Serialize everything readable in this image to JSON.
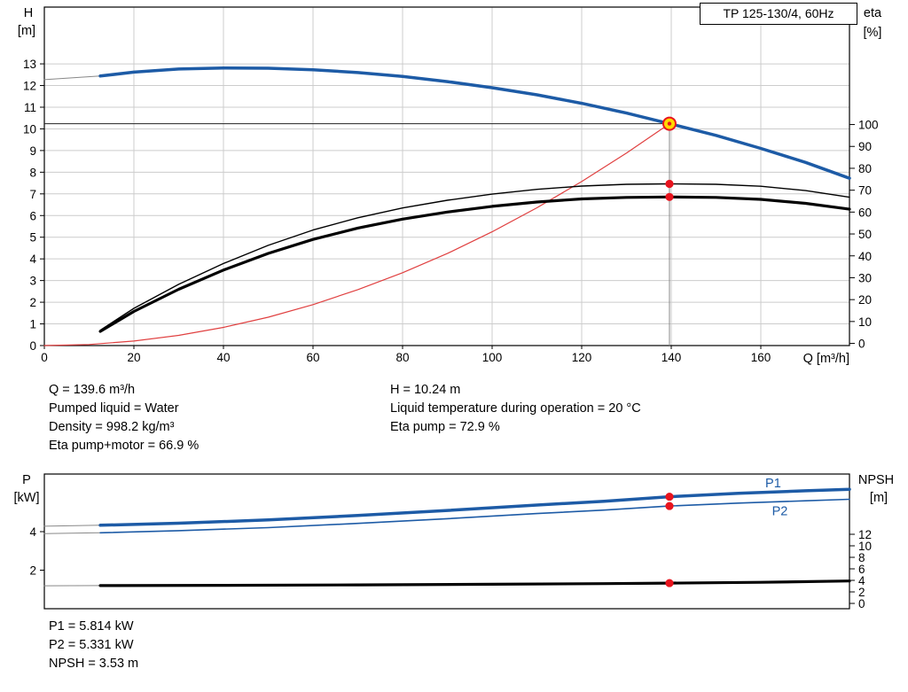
{
  "title_box": "TP 125-130/4, 60Hz",
  "colors": {
    "curve_blue": "#1d5ba6",
    "system_red": "#e04040",
    "dot_red": "#e8141e",
    "duty_yellow": "#ffd800",
    "grid": "#cccccc",
    "connector_gray": "#888888",
    "black": "#000000"
  },
  "chart_data": [
    {
      "type": "line",
      "name": "qh-performance",
      "grid": true,
      "x_label": "Q [m³/h]",
      "y_left_label": [
        "H",
        "[m]"
      ],
      "y_right_label": [
        "eta",
        "[%]"
      ],
      "axes": {
        "x": {
          "min": 0,
          "max": 179.8,
          "ticks": [
            0,
            20,
            40,
            60,
            80,
            100,
            120,
            140,
            160
          ]
        },
        "y_left": {
          "min": 0,
          "max": 15.62,
          "ticks": [
            0,
            1,
            2,
            3,
            4,
            5,
            6,
            7,
            8,
            9,
            10,
            11,
            12,
            13
          ]
        },
        "y_right": {
          "min": -0.99,
          "max": 153.66,
          "ticks": [
            0,
            10,
            20,
            30,
            40,
            50,
            60,
            70,
            80,
            90,
            100
          ]
        }
      },
      "ref_lines": [
        {
          "type": "h",
          "at": 10.24,
          "from": 0,
          "to": 139.6,
          "color": "#222222",
          "w": 1
        },
        {
          "type": "v",
          "at": 139.6,
          "from": 0,
          "to": 10.24,
          "color": "#888888",
          "w": 1
        }
      ],
      "series": [
        {
          "name": "pump-curve-connector",
          "axis": "left",
          "color": "#888888",
          "w": 1,
          "pts": [
            [
              0,
              12.27
            ],
            [
              12.5,
              12.44
            ]
          ]
        },
        {
          "name": "system-curve",
          "axis": "left",
          "color": "#e04040",
          "w": 1.2,
          "pts": [
            [
              0,
              0
            ],
            [
              10,
              0.05
            ],
            [
              20,
              0.21
            ],
            [
              30,
              0.47
            ],
            [
              40,
              0.84
            ],
            [
              50,
              1.31
            ],
            [
              60,
              1.89
            ],
            [
              70,
              2.58
            ],
            [
              80,
              3.36
            ],
            [
              90,
              4.25
            ],
            [
              100,
              5.25
            ],
            [
              110,
              6.36
            ],
            [
              120,
              7.57
            ],
            [
              130,
              8.88
            ],
            [
              139.6,
              10.24
            ]
          ]
        },
        {
          "name": "eta-pump-motor-curve",
          "axis": "right",
          "color": "#000000",
          "w": 3.2,
          "pts": [
            [
              12.5,
              5.5
            ],
            [
              20,
              14.6
            ],
            [
              30,
              24.7
            ],
            [
              40,
              33.5
            ],
            [
              50,
              41.1
            ],
            [
              60,
              47.5
            ],
            [
              70,
              52.7
            ],
            [
              80,
              56.8
            ],
            [
              90,
              60.0
            ],
            [
              100,
              62.6
            ],
            [
              110,
              64.6
            ],
            [
              120,
              66.0
            ],
            [
              130,
              66.7
            ],
            [
              139.6,
              66.9
            ],
            [
              150,
              66.7
            ],
            [
              160,
              65.8
            ],
            [
              170,
              64.0
            ],
            [
              179.8,
              61.3
            ]
          ]
        },
        {
          "name": "eta-pump-curve",
          "axis": "right",
          "color": "#000000",
          "w": 1.4,
          "pts": [
            [
              12.5,
              6
            ],
            [
              20,
              16
            ],
            [
              30,
              27
            ],
            [
              40,
              36.5
            ],
            [
              50,
              44.8
            ],
            [
              60,
              51.8
            ],
            [
              70,
              57.4
            ],
            [
              80,
              61.9
            ],
            [
              90,
              65.4
            ],
            [
              100,
              68.2
            ],
            [
              110,
              70.4
            ],
            [
              120,
              71.9
            ],
            [
              130,
              72.7
            ],
            [
              139.6,
              72.9
            ],
            [
              150,
              72.7
            ],
            [
              160,
              71.8
            ],
            [
              170,
              69.8
            ],
            [
              179.8,
              66.8
            ]
          ]
        },
        {
          "name": "pump-head-curve",
          "axis": "left",
          "color": "#1d5ba6",
          "w": 3.5,
          "pts": [
            [
              12.5,
              12.44
            ],
            [
              20,
              12.62
            ],
            [
              30,
              12.76
            ],
            [
              40,
              12.81
            ],
            [
              50,
              12.8
            ],
            [
              60,
              12.73
            ],
            [
              70,
              12.6
            ],
            [
              80,
              12.42
            ],
            [
              90,
              12.18
            ],
            [
              100,
              11.9
            ],
            [
              110,
              11.57
            ],
            [
              120,
              11.18
            ],
            [
              130,
              10.73
            ],
            [
              139.6,
              10.24
            ],
            [
              150,
              9.7
            ],
            [
              160,
              9.1
            ],
            [
              170,
              8.45
            ],
            [
              179.8,
              7.72
            ]
          ]
        }
      ],
      "markers": [
        {
          "name": "eta-pump-point",
          "type": "dot",
          "x": 139.6,
          "y": 72.9,
          "axis": "right",
          "color": "#e8141e"
        },
        {
          "name": "eta-pump-motor-point",
          "type": "dot",
          "x": 139.6,
          "y": 66.9,
          "axis": "right",
          "color": "#e8141e"
        },
        {
          "name": "duty-point",
          "type": "duty",
          "x": 139.6,
          "y": 10.24,
          "axis": "left",
          "fill": "#ffd800",
          "stroke": "#e8141e"
        }
      ]
    },
    {
      "type": "line",
      "name": "power-npsh",
      "grid": false,
      "x_label": "",
      "y_left_label": [
        "P",
        "[kW]"
      ],
      "y_right_label": [
        "NPSH",
        "[m]"
      ],
      "axes": {
        "x": {
          "min": 0,
          "max": 179.8,
          "ticks": []
        },
        "y_left": {
          "min": 0,
          "max": 6.99,
          "ticks": [
            2,
            4
          ]
        },
        "y_right": {
          "min": -0.92,
          "max": 22.46,
          "ticks": [
            0,
            2,
            4,
            6,
            8,
            10,
            12
          ]
        }
      },
      "ref_lines": [],
      "series": [
        {
          "name": "p1-connector",
          "axis": "left",
          "color": "#888888",
          "w": 1,
          "pts": [
            [
              0,
              4.28
            ],
            [
              12.5,
              4.33
            ]
          ]
        },
        {
          "name": "p2-connector",
          "axis": "left",
          "color": "#888888",
          "w": 1,
          "pts": [
            [
              0,
              3.9
            ],
            [
              12.5,
              3.94
            ]
          ]
        },
        {
          "name": "npsh-connector",
          "axis": "right",
          "color": "#888888",
          "w": 1,
          "pts": [
            [
              0,
              3.07
            ],
            [
              12.5,
              3.1
            ]
          ]
        },
        {
          "name": "p2-curve",
          "axis": "left",
          "color": "#1d5ba6",
          "w": 1.6,
          "pts": [
            [
              12.5,
              3.94
            ],
            [
              30,
              4.05
            ],
            [
              50,
              4.21
            ],
            [
              70,
              4.43
            ],
            [
              90,
              4.67
            ],
            [
              110,
              4.94
            ],
            [
              125,
              5.12
            ],
            [
              139.6,
              5.331
            ],
            [
              155,
              5.48
            ],
            [
              170,
              5.6
            ],
            [
              179.8,
              5.68
            ]
          ],
          "label": {
            "text": "P2",
            "x": 162.5,
            "y": 4.85
          }
        },
        {
          "name": "p1-curve",
          "axis": "left",
          "color": "#1d5ba6",
          "w": 3.5,
          "pts": [
            [
              12.5,
              4.33
            ],
            [
              30,
              4.44
            ],
            [
              50,
              4.61
            ],
            [
              70,
              4.84
            ],
            [
              90,
              5.1
            ],
            [
              110,
              5.38
            ],
            [
              125,
              5.58
            ],
            [
              139.6,
              5.814
            ],
            [
              155,
              5.99
            ],
            [
              170,
              6.12
            ],
            [
              179.8,
              6.2
            ]
          ],
          "label": {
            "text": "P1",
            "x": 161,
            "y": 6.3
          }
        },
        {
          "name": "npsh-curve",
          "axis": "right",
          "color": "#000000",
          "w": 3.2,
          "pts": [
            [
              12.5,
              3.1
            ],
            [
              40,
              3.14
            ],
            [
              70,
              3.22
            ],
            [
              100,
              3.33
            ],
            [
              125,
              3.44
            ],
            [
              139.6,
              3.53
            ],
            [
              160,
              3.66
            ],
            [
              179.8,
              3.9
            ]
          ]
        }
      ],
      "markers": [
        {
          "name": "p1-point",
          "type": "dot",
          "x": 139.6,
          "y": 5.814,
          "axis": "left",
          "color": "#e8141e"
        },
        {
          "name": "p2-point",
          "type": "dot",
          "x": 139.6,
          "y": 5.331,
          "axis": "left",
          "color": "#e8141e"
        },
        {
          "name": "npsh-point",
          "type": "dot",
          "x": 139.6,
          "y": 3.53,
          "axis": "right",
          "color": "#e8141e"
        }
      ]
    }
  ],
  "annotations": {
    "left_col": [
      "Q = 139.6 m³/h",
      "Pumped liquid = Water",
      "Density = 998.2 kg/m³",
      "Eta pump+motor = 66.9 %"
    ],
    "right_col": [
      "H = 10.24 m",
      "Liquid temperature during operation = 20 °C",
      "Eta pump = 72.9 %"
    ],
    "power_col": [
      "P1 = 5.814 kW",
      "P2 = 5.331 kW",
      "NPSH = 3.53 m"
    ]
  }
}
